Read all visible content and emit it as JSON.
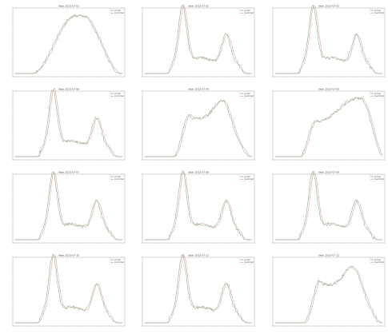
{
  "colors": {
    "actual": "#5a9a7a",
    "predicted": "#e0806c",
    "axis": "#555555"
  },
  "chart_data": [
    {
      "type": "line",
      "title": "date: 2015-07-01",
      "shape": "plateau",
      "legend": [
        "actual",
        "predicted"
      ]
    },
    {
      "type": "line",
      "title": "date: 2015-07-02",
      "shape": "bimodal",
      "legend": [
        "actual",
        "predicted"
      ]
    },
    {
      "type": "line",
      "title": "date: 2015-07-03",
      "shape": "bimodal",
      "legend": [
        "actual",
        "predicted"
      ]
    },
    {
      "type": "line",
      "title": "date: 2015-07-06",
      "shape": "bimodal",
      "legend": [
        "actual",
        "predicted"
      ]
    },
    {
      "type": "line",
      "title": "date: 2015-07-04",
      "shape": "plateau2",
      "legend": [
        "actual",
        "predicted"
      ]
    },
    {
      "type": "line",
      "title": "date: 2015-07-05",
      "shape": "plateau3",
      "legend": [
        "actual",
        "predicted"
      ]
    },
    {
      "type": "line",
      "title": "date: 2015-07-07",
      "shape": "bimodal",
      "legend": [
        "actual",
        "predicted"
      ]
    },
    {
      "type": "line",
      "title": "date: 2015-07-08",
      "shape": "bimodal",
      "legend": [
        "actual",
        "predicted"
      ]
    },
    {
      "type": "line",
      "title": "date: 2015-07-09",
      "shape": "bimodal",
      "legend": [
        "actual",
        "predicted"
      ]
    },
    {
      "type": "line",
      "title": "date: 2015-07-10",
      "shape": "bimodal",
      "legend": [
        "actual",
        "predicted"
      ]
    },
    {
      "type": "line",
      "title": "date: 2015-07-11",
      "shape": "bimodal",
      "legend": [
        "actual",
        "predicted"
      ]
    },
    {
      "type": "line",
      "title": "date: 2015-07-12",
      "shape": "plateau2",
      "legend": [
        "actual",
        "predicted"
      ]
    }
  ]
}
